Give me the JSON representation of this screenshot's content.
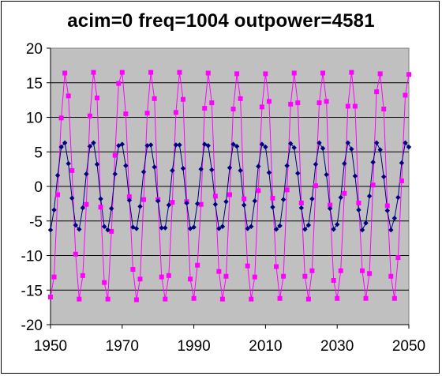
{
  "chart_data": {
    "type": "line",
    "title": "acim=0  freq=1004  outpower=4581",
    "xlabel": "",
    "ylabel": "",
    "xlim": [
      1950,
      2050
    ],
    "ylim": [
      -20,
      20
    ],
    "x_ticks": [
      1950,
      1970,
      1990,
      2010,
      2030,
      2050
    ],
    "y_ticks": [
      20,
      15,
      10,
      5,
      0,
      -5,
      -10,
      -15,
      -20
    ],
    "grid": "horizontal",
    "legend": "none",
    "plot_background": "#c0c0c0",
    "x": [
      1950,
      1951,
      1952,
      1953,
      1954,
      1955,
      1956,
      1957,
      1958,
      1959,
      1960,
      1961,
      1962,
      1963,
      1964,
      1965,
      1966,
      1967,
      1968,
      1969,
      1970,
      1971,
      1972,
      1973,
      1974,
      1975,
      1976,
      1977,
      1978,
      1979,
      1980,
      1981,
      1982,
      1983,
      1984,
      1985,
      1986,
      1987,
      1988,
      1989,
      1990,
      1991,
      1992,
      1993,
      1994,
      1995,
      1996,
      1997,
      1998,
      1999,
      2000,
      2001,
      2002,
      2003,
      2004,
      2005,
      2006,
      2007,
      2008,
      2009,
      2010,
      2011,
      2012,
      2013,
      2014,
      2015,
      2016,
      2017,
      2018,
      2019,
      2020,
      2021,
      2022,
      2023,
      2024,
      2025,
      2026,
      2027,
      2028,
      2029,
      2030,
      2031,
      2032,
      2033,
      2034,
      2035,
      2036,
      2037,
      2038,
      2039,
      2040,
      2041,
      2042,
      2043,
      2044,
      2045,
      2046,
      2047,
      2048,
      2049,
      2050
    ],
    "series": [
      {
        "color": "#000080",
        "marker": "diamond",
        "values": [
          -6.3,
          -3.4,
          1.6,
          5.7,
          6.3,
          3.3,
          -1.7,
          -5.6,
          -6.2,
          -3.1,
          1.8,
          5.8,
          6.3,
          3.2,
          -1.8,
          -5.8,
          -6.3,
          -3.2,
          1.8,
          5.9,
          6.1,
          3.0,
          -2.0,
          -5.9,
          -6.1,
          -2.9,
          2.1,
          5.9,
          6.0,
          2.8,
          -2.1,
          -6.0,
          -6.0,
          -2.7,
          2.3,
          6.0,
          6.0,
          2.6,
          -2.4,
          -6.1,
          -5.9,
          -2.5,
          2.5,
          6.1,
          5.9,
          2.4,
          -2.6,
          -6.1,
          -5.8,
          -2.2,
          2.7,
          6.1,
          5.8,
          2.3,
          -2.7,
          -6.1,
          -5.8,
          -2.1,
          2.9,
          6.1,
          5.7,
          2.0,
          -3.0,
          -6.2,
          -5.7,
          -1.9,
          3.0,
          6.2,
          5.6,
          1.9,
          -3.1,
          -6.2,
          -5.6,
          -1.8,
          3.2,
          6.3,
          5.5,
          1.7,
          -3.2,
          -6.2,
          -5.5,
          -1.6,
          3.3,
          6.3,
          5.4,
          1.5,
          -3.4,
          -6.3,
          -5.3,
          -1.4,
          3.5,
          6.3,
          5.3,
          1.4,
          -3.5,
          -6.3,
          -4.6,
          -1.6,
          3.4,
          6.3,
          5.7
        ]
      },
      {
        "color": "#ff00ff",
        "marker": "square",
        "values": [
          -16.0,
          -13.1,
          -1.2,
          9.9,
          16.4,
          13.1,
          2.3,
          -9.8,
          -16.3,
          -12.9,
          -2.6,
          10.2,
          16.5,
          12.8,
          -3.0,
          -13.9,
          -16.3,
          -6.5,
          4.5,
          14.9,
          16.5,
          10.5,
          -1.5,
          -12.0,
          -16.4,
          -13.4,
          -1.9,
          10.6,
          16.5,
          12.7,
          -1.9,
          -13.1,
          -16.3,
          -12.9,
          -2.3,
          10.7,
          16.5,
          12.6,
          -2.2,
          -13.4,
          -16.2,
          -11.4,
          -2.6,
          11.3,
          16.4,
          12.1,
          -1.4,
          -12.3,
          -16.3,
          -13.0,
          -1.2,
          11.2,
          16.3,
          12.7,
          -1.8,
          -11.5,
          -16.3,
          -13.1,
          -0.6,
          11.5,
          16.3,
          12.3,
          -1.7,
          -11.6,
          -16.2,
          -13.0,
          -0.5,
          11.9,
          16.4,
          12.1,
          -2.4,
          -13.0,
          -16.3,
          -12.2,
          0.1,
          12.1,
          16.4,
          12.3,
          -2.7,
          -13.6,
          -16.2,
          -12.2,
          -1.0,
          11.6,
          16.5,
          11.6,
          -2.4,
          -12.2,
          -16.2,
          -12.6,
          0.2,
          13.7,
          16.3,
          11.2,
          -2.8,
          -13.0,
          -16.2,
          -10.3,
          0.8,
          13.2,
          16.2
        ]
      }
    ]
  }
}
